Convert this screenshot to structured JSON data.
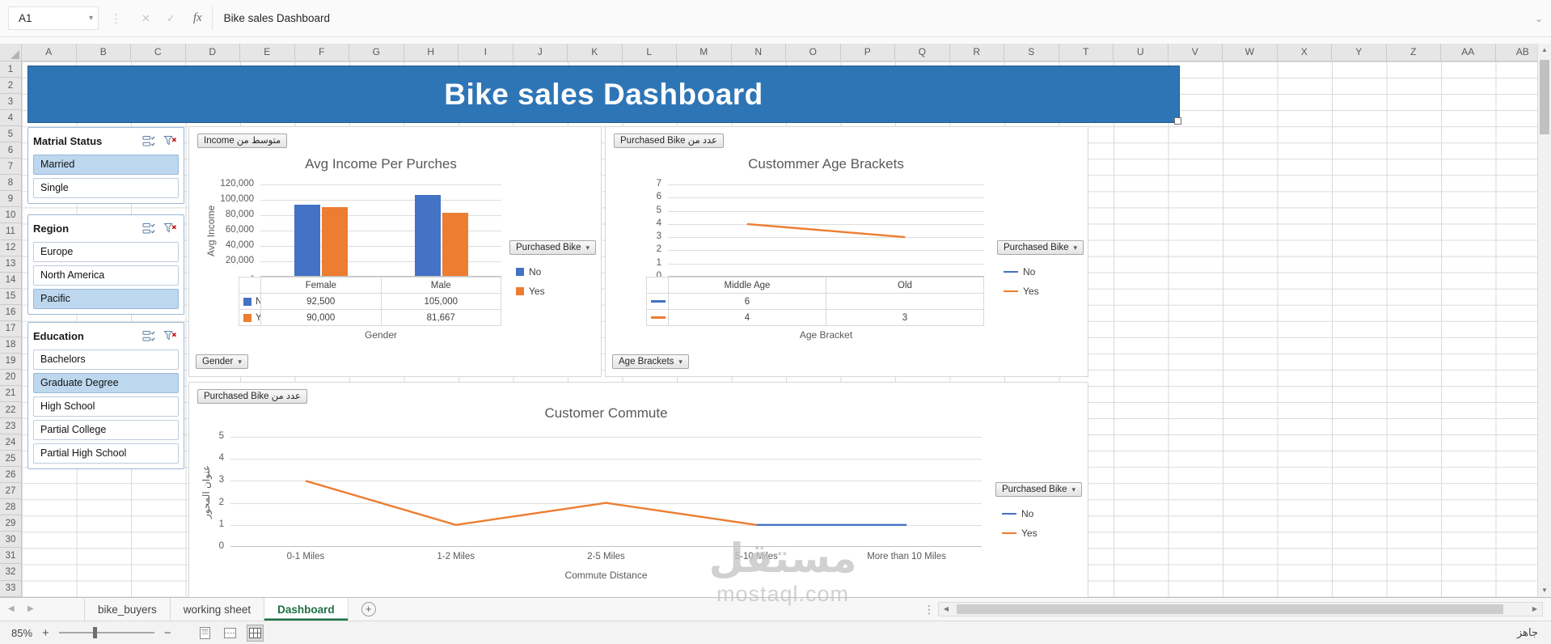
{
  "formula_bar": {
    "name_box": "A1",
    "fx": "fx",
    "value": "Bike sales Dashboard"
  },
  "grid": {
    "columns": [
      "A",
      "B",
      "C",
      "D",
      "E",
      "F",
      "G",
      "H",
      "I",
      "J",
      "K",
      "L",
      "M",
      "N",
      "O",
      "P",
      "Q",
      "R",
      "S",
      "T",
      "U",
      "V",
      "W",
      "X",
      "Y",
      "Z",
      "AA",
      "AB"
    ],
    "rows": [
      "1",
      "2",
      "3",
      "4",
      "5",
      "6",
      "7",
      "8",
      "9",
      "10",
      "11",
      "12",
      "13",
      "14",
      "15",
      "16",
      "17",
      "18",
      "19",
      "20",
      "21",
      "22",
      "23",
      "24",
      "25",
      "26",
      "27",
      "28",
      "29",
      "30",
      "31",
      "32",
      "33"
    ]
  },
  "banner": {
    "title": "Bike sales Dashboard",
    "bg_color": "#2E75B6"
  },
  "slicers": [
    {
      "title": "Matrial Status",
      "items": [
        {
          "label": "Married",
          "selected": true
        },
        {
          "label": "Single",
          "selected": false
        }
      ]
    },
    {
      "title": "Region",
      "items": [
        {
          "label": "Europe",
          "selected": false
        },
        {
          "label": "North America",
          "selected": false
        },
        {
          "label": "Pacific",
          "selected": true
        }
      ]
    },
    {
      "title": "Education",
      "items": [
        {
          "label": "Bachelors",
          "selected": false
        },
        {
          "label": "Graduate Degree",
          "selected": true
        },
        {
          "label": "High School",
          "selected": false
        },
        {
          "label": "Partial College",
          "selected": false
        },
        {
          "label": "Partial High School",
          "selected": false
        }
      ]
    }
  ],
  "chart_data": [
    {
      "id": "income",
      "type": "bar",
      "title": "Avg Income Per Purches",
      "field_button": "متوسط من Income",
      "axis_button": "Gender",
      "legend_button": "Purchased Bike",
      "categories": [
        "Female",
        "Male"
      ],
      "series": [
        {
          "name": "No",
          "color": "#4472C4",
          "values": [
            92500,
            105000
          ],
          "labels": [
            "92,500",
            "105,000"
          ]
        },
        {
          "name": "Yes",
          "color": "#ED7D31",
          "values": [
            90000,
            81667
          ],
          "labels": [
            "90,000",
            "81,667"
          ]
        }
      ],
      "ylabel": "Avg Income",
      "xlabel": "Gender",
      "ylim": [
        0,
        120000
      ],
      "yticks": [
        "-",
        "20,000",
        "40,000",
        "60,000",
        "80,000",
        "100,000",
        "120,000"
      ],
      "grid": true,
      "legend_position": "right"
    },
    {
      "id": "age",
      "type": "line",
      "title": "Custommer Age Brackets",
      "field_button": "عدد من Purchased Bike",
      "axis_button": "Age Brackets",
      "legend_button": "Purchased Bike",
      "categories": [
        "Middle Age",
        "Old"
      ],
      "series": [
        {
          "name": "No",
          "color": "#4472C4",
          "values": [
            6,
            null
          ],
          "labels": [
            "6",
            ""
          ]
        },
        {
          "name": "Yes",
          "color": "#ED7D31",
          "values": [
            4,
            3
          ],
          "labels": [
            "4",
            "3"
          ]
        }
      ],
      "xlabel": "Age Bracket",
      "ylim": [
        0,
        7
      ],
      "yticks": [
        "0",
        "1",
        "2",
        "3",
        "4",
        "5",
        "6",
        "7"
      ],
      "grid": true,
      "legend_position": "right"
    },
    {
      "id": "commute",
      "type": "line",
      "title": "Customer Commute",
      "field_button": "عدد من Purchased Bike",
      "legend_button": "Purchased Bike",
      "categories": [
        "0-1 Miles",
        "1-2 Miles",
        "2-5 Miles",
        "5-10 Miles",
        "More than 10 Miles"
      ],
      "series": [
        {
          "name": "No",
          "color": "#4472C4",
          "values": [
            null,
            null,
            null,
            1,
            1
          ]
        },
        {
          "name": "Yes",
          "color": "#ED7D31",
          "values": [
            3,
            1,
            2,
            1,
            null
          ]
        }
      ],
      "xlabel": "Commute Distance",
      "ylabel": "عنوان المحور",
      "ylim": [
        0,
        5
      ],
      "yticks": [
        "0",
        "1",
        "2",
        "3",
        "4",
        "5"
      ],
      "grid": true,
      "legend_position": "right"
    }
  ],
  "sheet_tabs": [
    {
      "label": "bike_buyers",
      "active": false
    },
    {
      "label": "working sheet",
      "active": false
    },
    {
      "label": "Dashboard",
      "active": true
    }
  ],
  "status_bar": {
    "zoom": "85%",
    "ready": "جاهز"
  },
  "watermark": {
    "title": "مستقل",
    "subtitle": "mostaql.com"
  }
}
